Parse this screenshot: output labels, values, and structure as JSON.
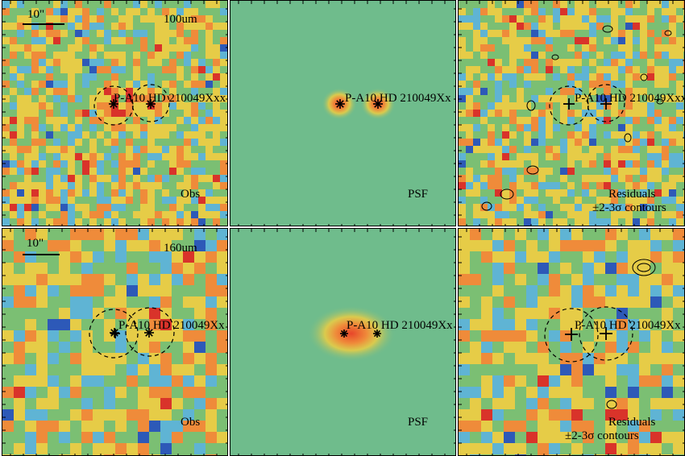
{
  "panels": [
    {
      "id": "p100-obs",
      "band": "100um",
      "kind": "Obs",
      "scale": "10\"",
      "sources": [
        "P-A10",
        "HD210049"
      ],
      "overlay": "P-A10 HD 210049Xxx"
    },
    {
      "id": "p100-psf",
      "kind": "PSF",
      "overlay": "P-A10 HD 210049Xx"
    },
    {
      "id": "p100-res",
      "kind_line1": "Residuals",
      "kind_line2": "±2-3σ contours",
      "overlay": "P-A10 HD 210049Xxx"
    },
    {
      "id": "p160-obs",
      "band": "160um",
      "kind": "Obs",
      "scale": "10\"",
      "overlay": "P-A10 HD 210049Xx"
    },
    {
      "id": "p160-psf",
      "kind": "PSF",
      "overlay": "P-A10 HD 210049Xx"
    },
    {
      "id": "p160-res",
      "kind_line1": "Residuals",
      "kind_line2": "±2-3σ contours",
      "overlay": "P-A10 HD 210049Xx"
    }
  ],
  "colors": {
    "psf_bg": "#6fbc8c",
    "psf_core": "#e8462a",
    "blue": "#2d59b8",
    "cyan": "#5fb4d4",
    "green": "#7bbf73",
    "yellow": "#e6cc47",
    "orange": "#ef8b3a",
    "red": "#d9332a"
  }
}
